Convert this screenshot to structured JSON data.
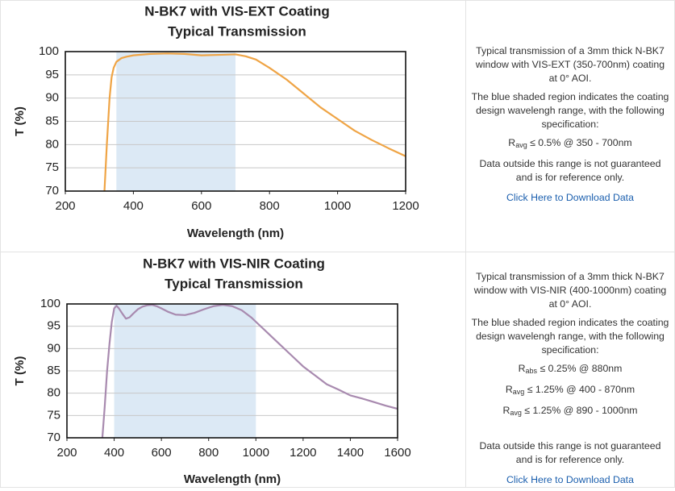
{
  "chart_data": [
    {
      "type": "line",
      "title": "N-BK7 with VIS-EXT Coating",
      "subtitle": "Typical Transmission",
      "x_label": "Wavelength (nm)",
      "y_label": "T (%)",
      "x": [
        315,
        322,
        330,
        336,
        342,
        350,
        365,
        380,
        400,
        450,
        500,
        550,
        600,
        650,
        700,
        730,
        760,
        800,
        850,
        900,
        950,
        1000,
        1050,
        1100,
        1150,
        1200
      ],
      "values": [
        70,
        80,
        90,
        94.5,
        96.5,
        97.8,
        98.6,
        98.9,
        99.2,
        99.5,
        99.6,
        99.5,
        99.2,
        99.3,
        99.4,
        99.0,
        98.3,
        96.5,
        94,
        91,
        88,
        85.5,
        83,
        81,
        79.2,
        77.5
      ],
      "color": "#efa445",
      "highlight": [
        350,
        700
      ],
      "highlight_color": "#dce9f5",
      "xlim": [
        200,
        1200
      ],
      "xticks": [
        200,
        400,
        600,
        800,
        1000,
        1200
      ],
      "ylim": [
        70,
        100
      ],
      "yticks": [
        70,
        75,
        80,
        85,
        90,
        95,
        100
      ],
      "grid": true
    },
    {
      "type": "line",
      "title": "N-BK7 with VIS-NIR Coating",
      "subtitle": "Typical Transmission",
      "x_label": "Wavelength (nm)",
      "y_label": "T (%)",
      "x": [
        350,
        360,
        370,
        380,
        390,
        400,
        410,
        420,
        435,
        450,
        465,
        480,
        500,
        520,
        540,
        560,
        580,
        600,
        630,
        660,
        700,
        740,
        780,
        820,
        860,
        900,
        940,
        980,
        1000,
        1050,
        1100,
        1150,
        1200,
        1250,
        1300,
        1350,
        1400,
        1450,
        1500,
        1550,
        1600
      ],
      "values": [
        70,
        77,
        85,
        91,
        96,
        99,
        99.6,
        99,
        97.8,
        96.7,
        97,
        97.8,
        98.8,
        99.4,
        99.7,
        99.8,
        99.5,
        99,
        98.2,
        97.6,
        97.5,
        98,
        98.8,
        99.5,
        99.8,
        99.5,
        98.6,
        97,
        96,
        93.5,
        91,
        88.5,
        86,
        84,
        82,
        80.8,
        79.5,
        78.8,
        78,
        77.2,
        76.5
      ],
      "color": "#a88aaf",
      "highlight": [
        400,
        1000
      ],
      "highlight_color": "#dce9f5",
      "xlim": [
        200,
        1600
      ],
      "xticks": [
        200,
        400,
        600,
        800,
        1000,
        1200,
        1400,
        1600
      ],
      "ylim": [
        70,
        100
      ],
      "yticks": [
        70,
        75,
        80,
        85,
        90,
        95,
        100
      ],
      "grid": true
    }
  ],
  "descriptions": [
    {
      "paragraphs": [
        "Typical transmission of a 3mm thick N-BK7 window with VIS-EXT (350-700nm) coating at 0° AOI.",
        "The blue shaded region indicates the coating design wavelengh range, with the following specification:"
      ],
      "specs": [
        {
          "symbol": "R",
          "subscript": "avg",
          "text": "≤ 0.5% @ 350 - 700nm"
        }
      ],
      "note": "Data outside this range is not guaranteed and is for reference only.",
      "link": "Click Here to Download Data"
    },
    {
      "paragraphs": [
        "Typical transmission of a 3mm thick N-BK7 window with VIS-NIR (400-1000nm) coating at 0° AOI.",
        "The blue shaded region indicates the coating design wavelengh range, with the following specification:"
      ],
      "specs": [
        {
          "symbol": "R",
          "subscript": "abs",
          "text": "≤ 0.25% @ 880nm"
        },
        {
          "symbol": "R",
          "subscript": "avg",
          "text": "≤ 1.25% @ 400 - 870nm"
        },
        {
          "symbol": "R",
          "subscript": "avg",
          "text": "≤ 1.25% @ 890 - 1000nm"
        }
      ],
      "note": "Data outside this range is not guaranteed and is for reference only.",
      "link": "Click Here to Download Data"
    }
  ]
}
